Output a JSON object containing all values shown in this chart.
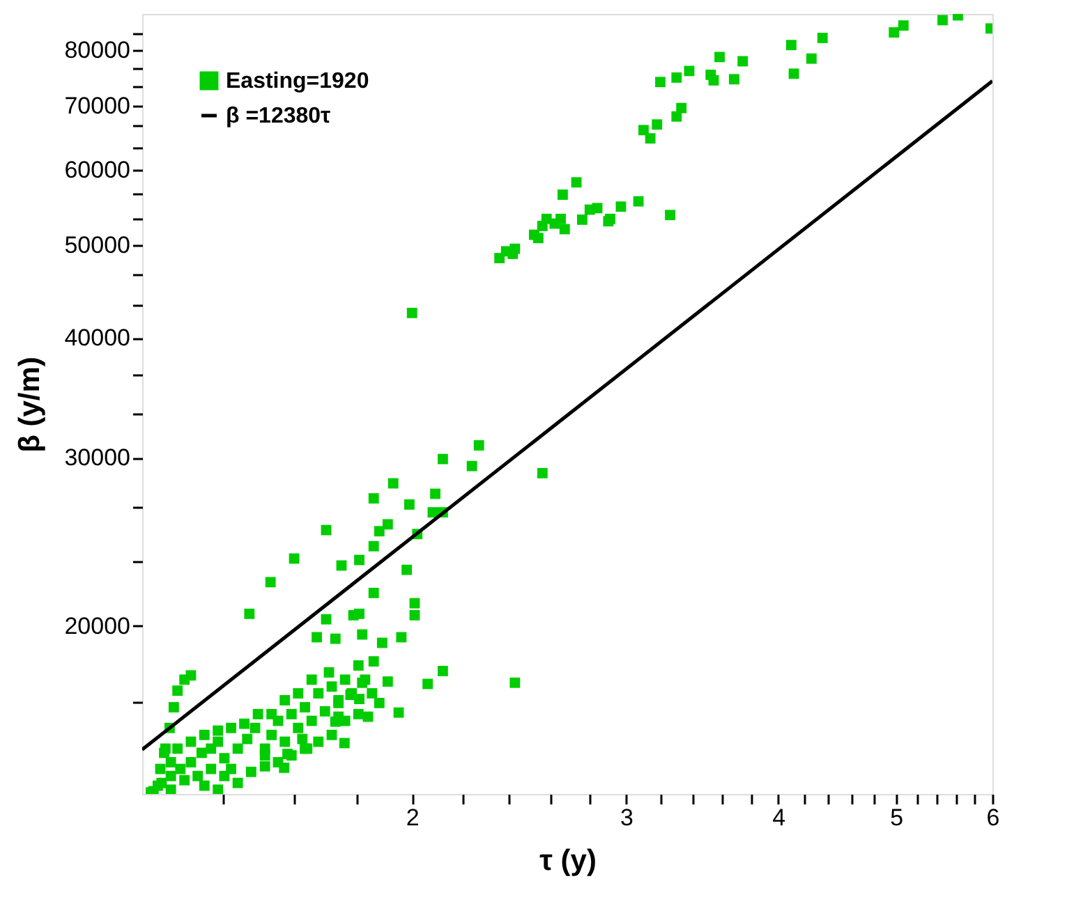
{
  "chart_data": {
    "type": "scatter",
    "xlabel": "τ (y)",
    "ylabel": "β (y/m)",
    "log": "xy",
    "grid": false,
    "legend": "top left",
    "xlim": [
      1.2,
      6
    ],
    "ylim": [
      13350,
      87300
    ],
    "xticks": [
      {
        "value": 1.4,
        "label": null
      },
      {
        "value": 1.6,
        "label": null
      },
      {
        "value": 1.8,
        "label": null
      },
      2,
      {
        "value": 2.2,
        "label": null
      },
      {
        "value": 2.4,
        "label": null
      },
      {
        "value": 2.6,
        "label": null
      },
      {
        "value": 2.8,
        "label": null
      },
      3,
      {
        "value": 3.2,
        "label": null
      },
      {
        "value": 3.4,
        "label": null
      },
      {
        "value": 3.6,
        "label": null
      },
      {
        "value": 3.8,
        "label": null
      },
      4,
      {
        "value": 4.2,
        "label": null
      },
      {
        "value": 4.4,
        "label": null
      },
      {
        "value": 4.6,
        "label": null
      },
      {
        "value": 4.8,
        "label": null
      },
      5,
      {
        "value": 5.2,
        "label": null
      },
      {
        "value": 5.4,
        "label": null
      },
      {
        "value": 5.6,
        "label": null
      },
      {
        "value": 5.8,
        "label": null
      },
      6
    ],
    "yticks": [
      {
        "value": 16667,
        "label": null
      },
      20000,
      {
        "value": 23333,
        "label": null
      },
      {
        "value": 26667,
        "label": null
      },
      30000,
      {
        "value": 33333,
        "label": null
      },
      {
        "value": 36667,
        "label": null
      },
      40000,
      {
        "value": 43333,
        "label": null
      },
      {
        "value": 46667,
        "label": null
      },
      50000,
      {
        "value": 53333,
        "label": null
      },
      {
        "value": 56667,
        "label": null
      },
      60000,
      {
        "value": 63333,
        "label": null
      },
      {
        "value": 66667,
        "label": null
      },
      70000,
      {
        "value": 73333,
        "label": null
      },
      {
        "value": 76667,
        "label": null
      },
      80000,
      {
        "value": 83333,
        "label": null
      }
    ],
    "series": [
      {
        "name": "Easting=1920",
        "marker": "square",
        "color": "#00cc00",
        "x": [
          2.0,
          2.36,
          2.39,
          2.43,
          2.42,
          2.52,
          2.54,
          2.56,
          2.58,
          2.62,
          2.65,
          2.67,
          2.66,
          2.73,
          2.76,
          2.8,
          2.84,
          2.9,
          2.91,
          2.97,
          3.07,
          3.1,
          3.14,
          3.18,
          3.26,
          3.3,
          3.33,
          3.2,
          3.3,
          3.38,
          3.52,
          3.54,
          3.58,
          3.68,
          3.74,
          4.1,
          4.12,
          4.26,
          4.35,
          4.98,
          5.07,
          5.46,
          5.62,
          5.98,
          2.27,
          2.12,
          2.24,
          2.56,
          1.93,
          1.86,
          2.09,
          1.99,
          2.08,
          2.12,
          1.91,
          1.88,
          2.02,
          1.86,
          1.7,
          1.6,
          1.75,
          1.81,
          1.53,
          1.98,
          1.86,
          1.47,
          2.01,
          2.01,
          1.79,
          1.81,
          1.7,
          1.82,
          1.73,
          1.67,
          1.96,
          1.89,
          1.86,
          2.12,
          2.06,
          2.43,
          1.91,
          1.82,
          1.78,
          1.81,
          1.88,
          1.95,
          1.74,
          1.84,
          1.73,
          1.76,
          1.64,
          1.57,
          1.58,
          1.226,
          1.242,
          1.254,
          1.264,
          1.274,
          1.283,
          1.3,
          1.316,
          1.22,
          1.245,
          1.267,
          1.29,
          1.316,
          1.343,
          1.367,
          1.385,
          1.402,
          1.42,
          1.438,
          1.464,
          1.486,
          1.514,
          1.533,
          1.552,
          1.572,
          1.592,
          1.612,
          1.633,
          1.654,
          1.675,
          1.696,
          1.718,
          1.74,
          1.762,
          1.784,
          1.807,
          1.83,
          1.709,
          1.654,
          1.612,
          1.572,
          1.533,
          1.494,
          1.456,
          1.42,
          1.385,
          1.35,
          1.316,
          1.283,
          1.251,
          1.267,
          1.3,
          1.333,
          1.367,
          1.402,
          1.438,
          1.475,
          1.514,
          1.552,
          1.592,
          1.633,
          1.675,
          1.718,
          1.762,
          1.807,
          1.854,
          1.236,
          1.267,
          1.385,
          1.35,
          1.514,
          1.625,
          1.74
        ],
        "values": [
          42500,
          48500,
          49300,
          49600,
          49000,
          51300,
          50900,
          52400,
          53300,
          52700,
          53300,
          52000,
          56500,
          58200,
          53200,
          54500,
          54700,
          53000,
          53300,
          54900,
          55600,
          66000,
          64700,
          66900,
          53800,
          68200,
          69600,
          74100,
          74900,
          76100,
          75400,
          74400,
          78700,
          74600,
          77900,
          81000,
          75600,
          78400,
          82400,
          83500,
          84900,
          86000,
          87000,
          84300,
          30900,
          29900,
          29400,
          28900,
          28200,
          27200,
          27500,
          26800,
          26300,
          26300,
          25550,
          25130,
          24960,
          24240,
          25200,
          23530,
          23140,
          23450,
          22230,
          22900,
          21660,
          20600,
          21130,
          20530,
          20530,
          20600,
          20330,
          19600,
          19400,
          19470,
          19470,
          19210,
          18370,
          17950,
          17400,
          17450,
          17500,
          17450,
          16950,
          16780,
          16620,
          16240,
          16620,
          16080,
          15890,
          15090,
          14890,
          14220,
          14700,
          13440,
          14180,
          14890,
          15650,
          16450,
          17120,
          17580,
          17760,
          13400,
          13710,
          13940,
          14180,
          14410,
          14740,
          14890,
          15140,
          14550,
          14180,
          14890,
          15240,
          15650,
          14890,
          15390,
          15920,
          15140,
          16180,
          15650,
          16450,
          15920,
          17010,
          16290,
          17290,
          16730,
          17580,
          17010,
          18190,
          17580,
          17890,
          17580,
          17010,
          16730,
          16180,
          16180,
          15810,
          15650,
          15550,
          15390,
          15140,
          14890,
          14740,
          14410,
          13800,
          13940,
          14180,
          13940,
          13710,
          14080,
          14270,
          14410,
          14650,
          14890,
          15140,
          15390,
          15920,
          16180,
          17010,
          13620,
          13490,
          13490,
          13620,
          14650,
          15240,
          16080
        ]
      },
      {
        "name": "β =12380τ",
        "type": "line",
        "color": "#000000",
        "line_style": "solid",
        "x": [
          1.2,
          6
        ],
        "values": [
          14856,
          74280
        ]
      }
    ]
  }
}
